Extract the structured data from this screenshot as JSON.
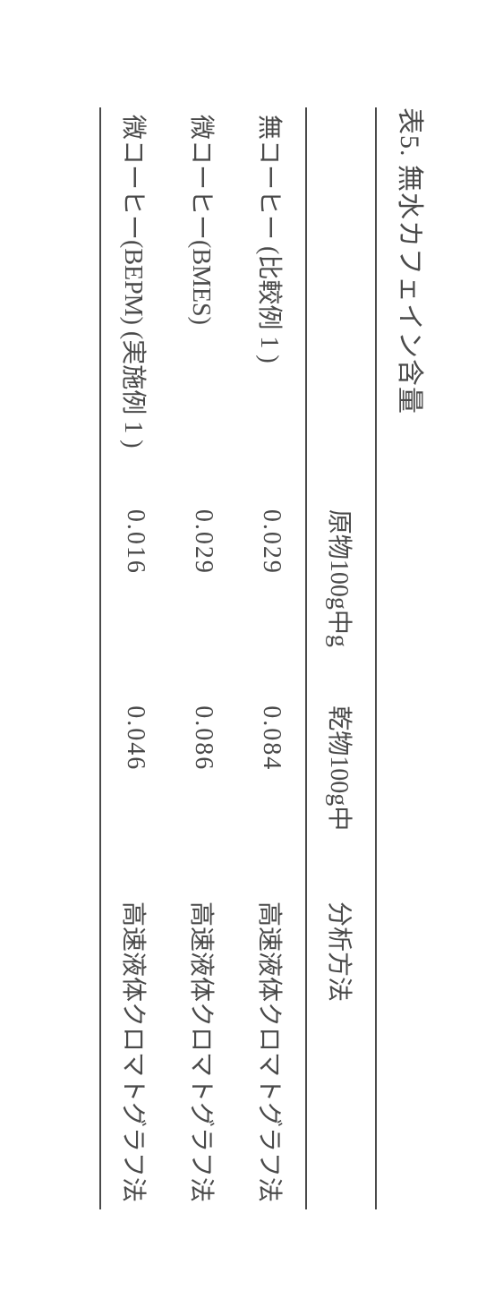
{
  "caption": "表5. 無水カフェイン含量",
  "table": {
    "headers": {
      "sample": "",
      "raw": "原物100g中g",
      "dry": "乾物100g中",
      "method": "分析方法"
    },
    "rows": [
      {
        "sample": "無コーヒー (比較例 1 )",
        "raw": "0.029",
        "dry": "0.084",
        "method": "高速液体クロマトグラフ法"
      },
      {
        "sample": "微コーヒー(BMES)",
        "raw": "0.029",
        "dry": "0.086",
        "method": "高速液体クロマトグラフ法"
      },
      {
        "sample": "微コーヒー(BEPM) (実施例 1 )",
        "raw": "0.016",
        "dry": "0.046",
        "method": "高速液体クロマトグラフ法"
      }
    ]
  }
}
